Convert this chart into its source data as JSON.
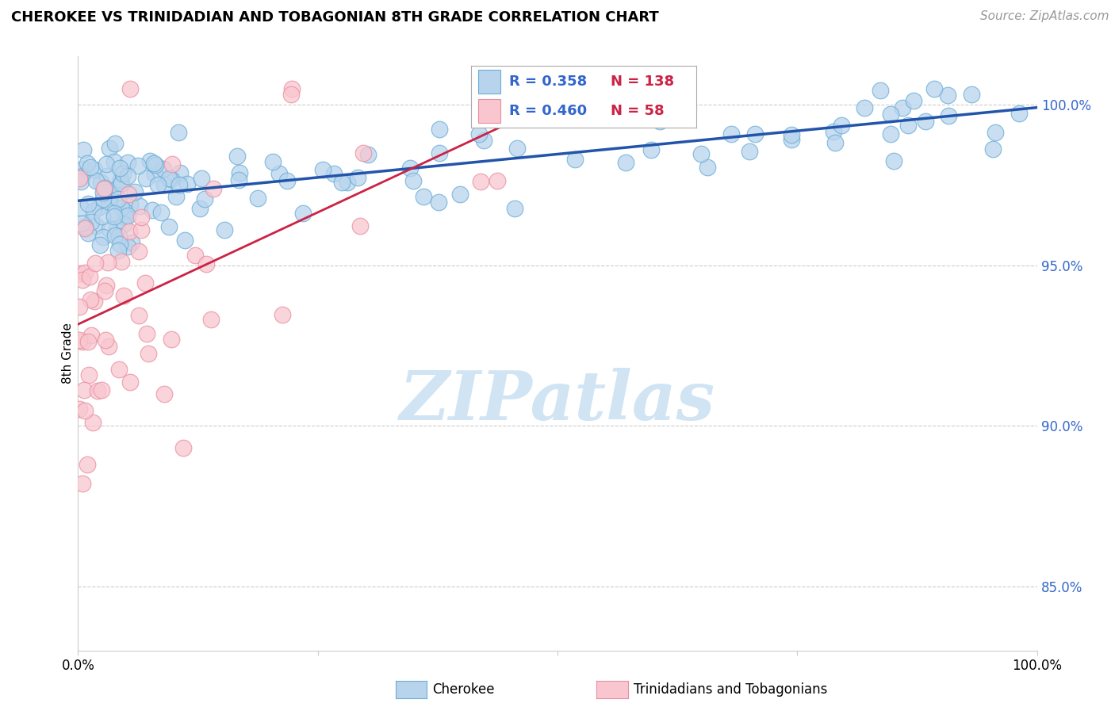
{
  "title": "CHEROKEE VS TRINIDADIAN AND TOBAGONIAN 8TH GRADE CORRELATION CHART",
  "source": "Source: ZipAtlas.com",
  "ylabel": "8th Grade",
  "blue_R": 0.358,
  "blue_N": 138,
  "pink_R": 0.46,
  "pink_N": 58,
  "blue_color": "#b8d4ed",
  "blue_edge": "#6baed6",
  "pink_color": "#f9c6d0",
  "pink_edge": "#e88fa0",
  "blue_line_color": "#2255aa",
  "pink_line_color": "#cc2244",
  "legend_label_blue": "Cherokee",
  "legend_label_pink": "Trinidadians and Tobagonians",
  "ylim_min": 83.0,
  "ylim_max": 101.5,
  "xlim_min": 0.0,
  "xlim_max": 100.0,
  "ytick_vals": [
    85.0,
    90.0,
    95.0,
    100.0
  ],
  "ytick_labels": [
    "85.0%",
    "90.0%",
    "95.0%",
    "100.0%"
  ],
  "xtick_vals": [
    0,
    25,
    50,
    75,
    100
  ],
  "xtick_labels": [
    "0.0%",
    "",
    "",
    "",
    "100.0%"
  ],
  "grid_color": "#cccccc",
  "watermark_text": "ZIPatlas",
  "watermark_color": "#d0e4f4",
  "title_fontsize": 13,
  "source_fontsize": 11,
  "tick_fontsize": 12,
  "ylabel_fontsize": 11
}
